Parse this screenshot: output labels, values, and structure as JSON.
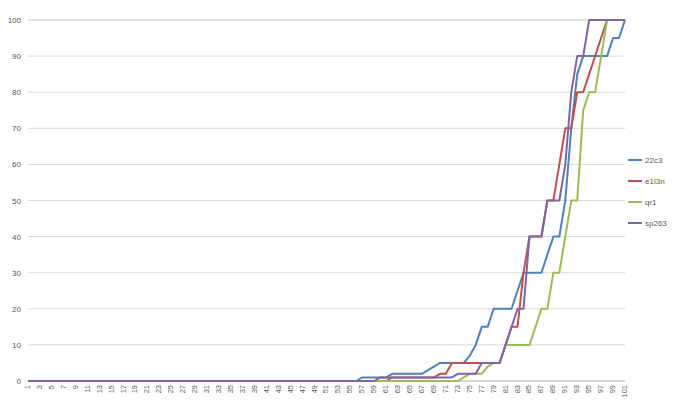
{
  "chart_data": {
    "type": "line",
    "categories": [
      "1",
      null,
      "3",
      null,
      "5",
      null,
      "7",
      null,
      "9",
      null,
      "11",
      null,
      "13",
      null,
      "15",
      null,
      "17",
      null,
      "19",
      null,
      "21",
      null,
      "23",
      null,
      "25",
      null,
      "27",
      null,
      "29",
      null,
      "31",
      null,
      "33",
      null,
      "35",
      null,
      "37",
      null,
      "39",
      null,
      "41",
      null,
      "43",
      null,
      "45",
      null,
      "47",
      null,
      "49",
      null,
      "51",
      null,
      "53",
      null,
      "55",
      null,
      "57",
      null,
      "59",
      null,
      "61",
      null,
      "63",
      null,
      "65",
      null,
      "67",
      null,
      "69",
      null,
      "71",
      null,
      "73",
      null,
      "75",
      null,
      "77",
      null,
      "79",
      null,
      "81",
      null,
      "83",
      null,
      "85",
      null,
      "87",
      null,
      "89",
      null,
      "91",
      null,
      "93",
      null,
      "95",
      null,
      "97",
      null,
      "99",
      null,
      "101"
    ],
    "series": [
      {
        "name": "22c3",
        "color": "#4f81bd",
        "values": [
          0,
          0,
          0,
          0,
          0,
          0,
          0,
          0,
          0,
          0,
          0,
          0,
          0,
          0,
          0,
          0,
          0,
          0,
          0,
          0,
          0,
          0,
          0,
          0,
          0,
          0,
          0,
          0,
          0,
          0,
          0,
          0,
          0,
          0,
          0,
          0,
          0,
          0,
          0,
          0,
          0,
          0,
          0,
          0,
          0,
          0,
          0,
          0,
          0,
          0,
          0,
          0,
          0,
          0,
          0,
          0,
          1,
          1,
          1,
          1,
          1,
          2,
          2,
          2,
          2,
          2,
          2,
          3,
          4,
          5,
          5,
          5,
          5,
          5,
          7,
          10,
          15,
          15,
          20,
          20,
          20,
          20,
          25,
          30,
          30,
          30,
          30,
          35,
          40,
          40,
          50,
          70,
          85,
          90,
          90,
          90,
          90,
          90,
          95,
          95,
          100
        ]
      },
      {
        "name": "e1l3n",
        "color": "#c0504d",
        "values": [
          0,
          0,
          0,
          0,
          0,
          0,
          0,
          0,
          0,
          0,
          0,
          0,
          0,
          0,
          0,
          0,
          0,
          0,
          0,
          0,
          0,
          0,
          0,
          0,
          0,
          0,
          0,
          0,
          0,
          0,
          0,
          0,
          0,
          0,
          0,
          0,
          0,
          0,
          0,
          0,
          0,
          0,
          0,
          0,
          0,
          0,
          0,
          0,
          0,
          0,
          0,
          0,
          0,
          0,
          0,
          0,
          0,
          0,
          0,
          0,
          0,
          1,
          1,
          1,
          1,
          1,
          1,
          1,
          1,
          2,
          2,
          5,
          5,
          5,
          5,
          5,
          5,
          5,
          5,
          5,
          10,
          15,
          15,
          30,
          40,
          40,
          40,
          50,
          50,
          60,
          70,
          70,
          80,
          80,
          85,
          90,
          95,
          100,
          100,
          100,
          100
        ]
      },
      {
        "name": "qr1",
        "color": "#9bbb59",
        "values": [
          0,
          0,
          0,
          0,
          0,
          0,
          0,
          0,
          0,
          0,
          0,
          0,
          0,
          0,
          0,
          0,
          0,
          0,
          0,
          0,
          0,
          0,
          0,
          0,
          0,
          0,
          0,
          0,
          0,
          0,
          0,
          0,
          0,
          0,
          0,
          0,
          0,
          0,
          0,
          0,
          0,
          0,
          0,
          0,
          0,
          0,
          0,
          0,
          0,
          0,
          0,
          0,
          0,
          0,
          0,
          0,
          0,
          0,
          0,
          0,
          0,
          0,
          0,
          0,
          0,
          0,
          0,
          0,
          0,
          0,
          0,
          0,
          0,
          1,
          2,
          2,
          2,
          4,
          5,
          5,
          10,
          10,
          10,
          10,
          10,
          15,
          20,
          20,
          30,
          30,
          40,
          50,
          50,
          75,
          80,
          80,
          90,
          100,
          100,
          100,
          100
        ]
      },
      {
        "name": "sp263",
        "color": "#8064a2",
        "values": [
          0,
          0,
          0,
          0,
          0,
          0,
          0,
          0,
          0,
          0,
          0,
          0,
          0,
          0,
          0,
          0,
          0,
          0,
          0,
          0,
          0,
          0,
          0,
          0,
          0,
          0,
          0,
          0,
          0,
          0,
          0,
          0,
          0,
          0,
          0,
          0,
          0,
          0,
          0,
          0,
          0,
          0,
          0,
          0,
          0,
          0,
          0,
          0,
          0,
          0,
          0,
          0,
          0,
          0,
          0,
          0,
          0,
          0,
          0,
          1,
          1,
          1,
          1,
          1,
          1,
          1,
          1,
          1,
          1,
          1,
          1,
          1,
          2,
          2,
          2,
          2,
          5,
          5,
          5,
          5,
          10,
          15,
          20,
          20,
          40,
          40,
          40,
          50,
          50,
          50,
          60,
          80,
          90,
          90,
          100,
          100,
          100,
          100,
          100,
          100,
          100
        ]
      }
    ],
    "ylim": [
      0,
      100
    ],
    "yticks": [
      0,
      10,
      20,
      30,
      40,
      50,
      60,
      70,
      80,
      90,
      100
    ],
    "grid": true,
    "legend": "right"
  }
}
